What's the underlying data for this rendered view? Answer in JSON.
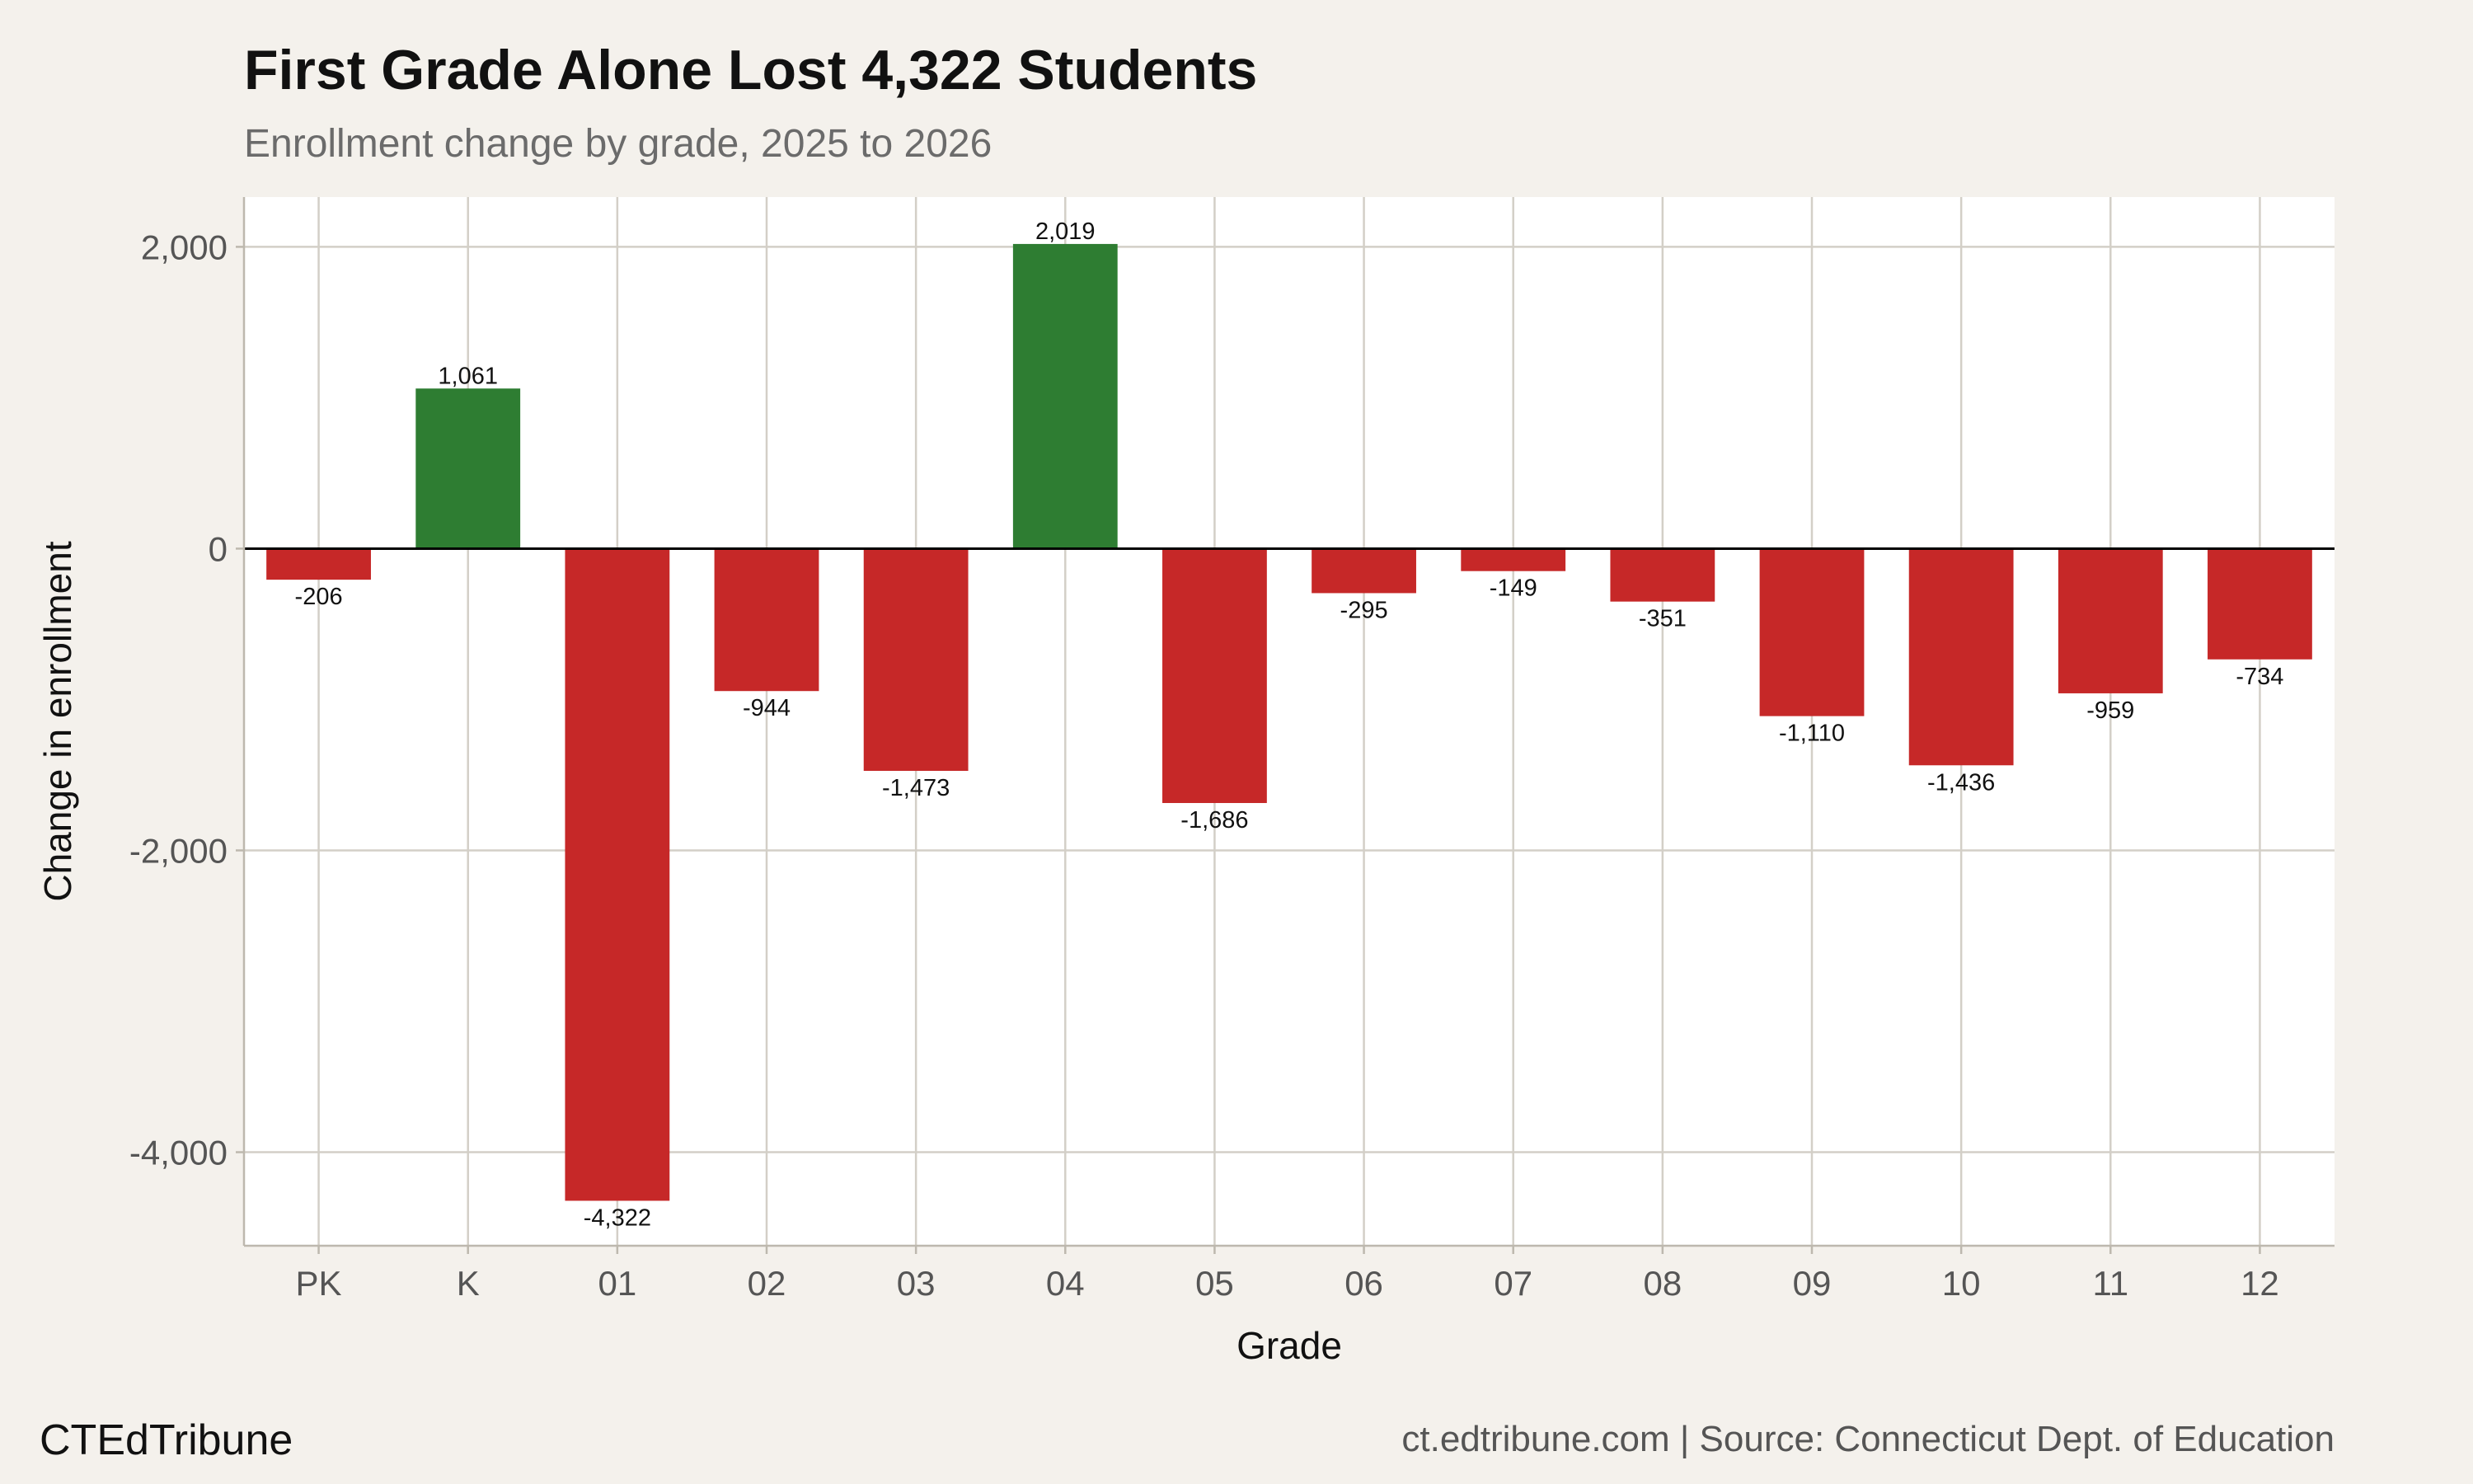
{
  "chart_data": {
    "type": "bar",
    "title": "First Grade Alone Lost 4,322 Students",
    "subtitle": "Enrollment change by grade, 2025 to 2026",
    "xlabel": "Grade",
    "ylabel": "Change in enrollment",
    "categories": [
      "PK",
      "K",
      "01",
      "02",
      "03",
      "04",
      "05",
      "06",
      "07",
      "08",
      "09",
      "10",
      "11",
      "12"
    ],
    "values": [
      -206,
      1061,
      -4322,
      -944,
      -1473,
      2019,
      -1686,
      -295,
      -149,
      -351,
      -1110,
      -1436,
      -959,
      -734
    ],
    "data_labels": [
      "-206",
      "1,061",
      "-4,322",
      "-944",
      "-1,473",
      "2,019",
      "-1,686",
      "-295",
      "-149",
      "-351",
      "-1,110",
      "-1,436",
      "-959",
      "-734"
    ],
    "yticks": [
      2000,
      0,
      -2000,
      -4000
    ],
    "ytick_labels": [
      "2,000",
      "0",
      "-2,000",
      "-4,000"
    ],
    "ylim": [
      -4620,
      2330
    ],
    "grid": true,
    "legend": "none",
    "colors": {
      "positive": "#2e7d32",
      "negative": "#c62828",
      "background": "#f4f1ec",
      "panel": "#ffffff",
      "grid": "#d3cfc7",
      "zero_line": "#000000"
    }
  },
  "footer": {
    "brand": "CTEdTribune",
    "source": "ct.edtribune.com | Source: Connecticut Dept. of Education"
  }
}
